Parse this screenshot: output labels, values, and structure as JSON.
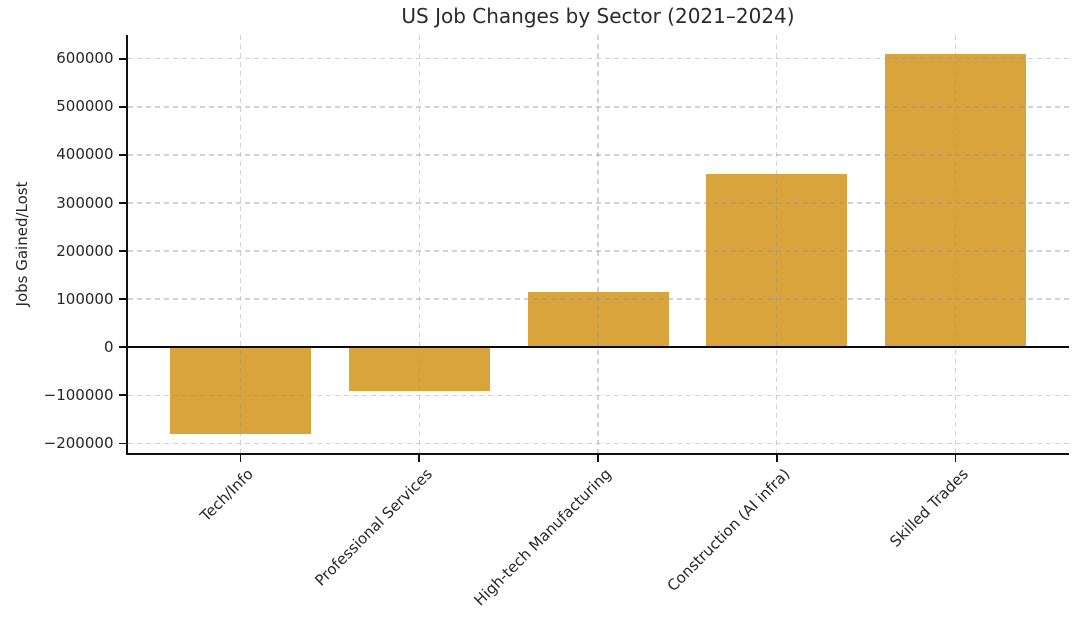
{
  "figure": {
    "background": "#ffffff"
  },
  "chart_data": {
    "type": "bar",
    "title": "US Job Changes by Sector (2021–2024)",
    "xlabel": "",
    "ylabel": "Jobs Gained/Lost",
    "categories": [
      "Tech/Info",
      "Professional Services",
      "High-tech Manufacturing",
      "Construction (AI infra)",
      "Skilled Trades"
    ],
    "values": [
      -180000,
      -92000,
      115000,
      360000,
      610000
    ],
    "bar_color": "#d9a43c",
    "ylim": [
      -219500,
      649500
    ],
    "yticks": [
      600000,
      500000,
      400000,
      300000,
      200000,
      100000,
      0,
      -100000,
      -200000
    ],
    "ytick_labels": [
      "600000",
      "500000",
      "400000",
      "300000",
      "200000",
      "100000",
      "0",
      "−100000",
      "−200000"
    ],
    "grid": true,
    "grid_style": "dashed",
    "legend": null,
    "zero_line": true,
    "zero_line_color": "#0a0a0a",
    "spine_color": "#111111",
    "text_color": "#262626"
  }
}
